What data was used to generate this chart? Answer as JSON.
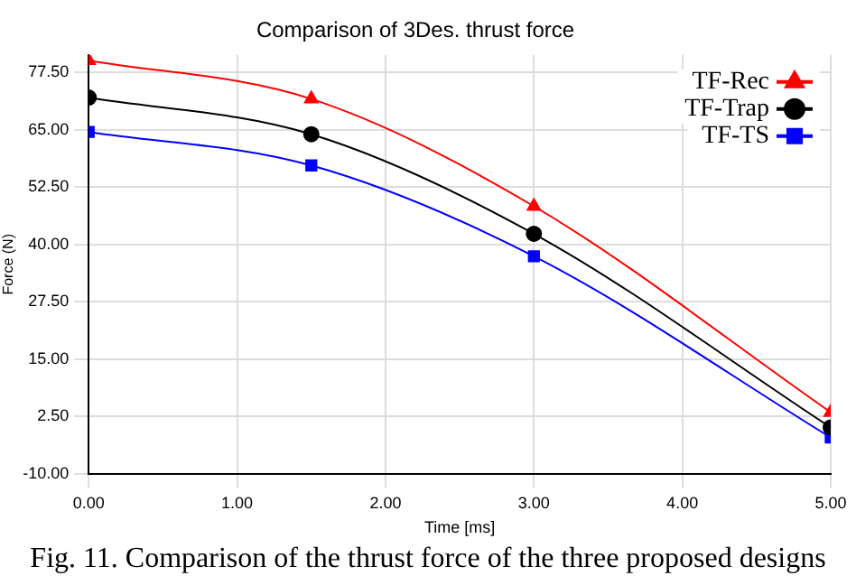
{
  "chart_data": {
    "type": "line",
    "title": "Comparison of 3Des. thrust force",
    "xlabel": "Time [ms]",
    "ylabel": "Force (N)",
    "annotations": [
      "Fig. 11. Comparison of the thrust force of the three proposed designs"
    ],
    "x": [
      0,
      1.5,
      3,
      5
    ],
    "series": [
      {
        "name": "TF-Rec",
        "color": "#ff0000",
        "marker": "triangle",
        "values": [
          80.1,
          71.7,
          48.3,
          3.4
        ]
      },
      {
        "name": "TF-Trap",
        "color": "#000000",
        "marker": "circle",
        "values": [
          72.0,
          64.0,
          42.3,
          0.1
        ]
      },
      {
        "name": "TF-TS",
        "color": "#0000ff",
        "marker": "square",
        "values": [
          64.5,
          57.2,
          37.4,
          -2.1
        ]
      }
    ],
    "xlim": [
      0,
      5
    ],
    "xticks": [
      {
        "value": 0,
        "label": "0.00"
      },
      {
        "value": 1,
        "label": "1.00"
      },
      {
        "value": 2,
        "label": "2.00"
      },
      {
        "value": 3,
        "label": "3.00"
      },
      {
        "value": 4,
        "label": "4.00"
      },
      {
        "value": 5,
        "label": "5.00"
      }
    ],
    "ylim": [
      -10,
      81.3
    ],
    "yticks": [
      {
        "value": -10,
        "label": "-10.00"
      },
      {
        "value": 2.5,
        "label": "2.50"
      },
      {
        "value": 15,
        "label": "15.00"
      },
      {
        "value": 27.5,
        "label": "27.50"
      },
      {
        "value": 40,
        "label": "40.00"
      },
      {
        "value": 52.5,
        "label": "52.50"
      },
      {
        "value": 65,
        "label": "65.00"
      },
      {
        "value": 77.5,
        "label": "77.50"
      }
    ],
    "grid": true,
    "legend": "top right"
  }
}
